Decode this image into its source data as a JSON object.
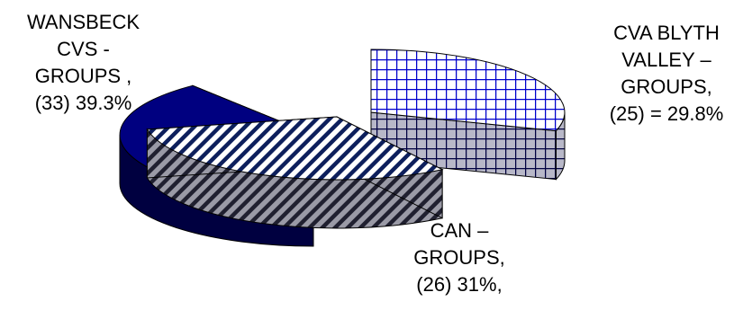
{
  "chart_data": {
    "type": "pie",
    "title": "",
    "slices": [
      {
        "name": "WANSBECK CVS - GROUPS",
        "count": 33,
        "percent": 39.3,
        "label_lines": [
          "WANSBECK",
          "CVS -",
          "GROUPS   ,",
          "(33) 39.3%"
        ],
        "color": "#000080",
        "pattern": "solid"
      },
      {
        "name": "CVA BLYTH VALLEY – GROUPS",
        "count": 25,
        "percent": 29.8,
        "label_lines": [
          "CVA BLYTH",
          "VALLEY –",
          "GROUPS,",
          "(25) = 29.8%"
        ],
        "color": "#0000cc",
        "pattern": "grid"
      },
      {
        "name": "CAN – GROUPS",
        "count": 26,
        "percent": 31,
        "label_lines": [
          "CAN –",
          "GROUPS,",
          "(26) 31%,"
        ],
        "color": "#000060",
        "pattern": "diagonal"
      }
    ]
  }
}
